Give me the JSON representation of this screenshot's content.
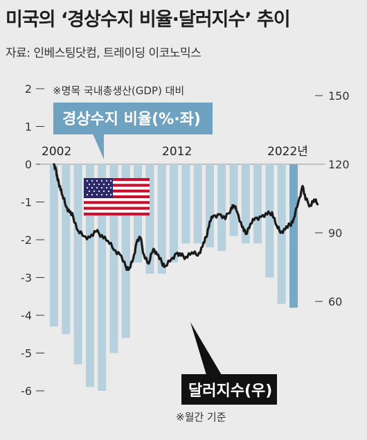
{
  "title": "미국의 ‘경상수지 비율·달러지수’ 추이",
  "source": "자료: 인베스팅닷컴, 트레이딩 이코노믹스",
  "colors": {
    "background": "#ebebeb",
    "bar_light": "#b7d0de",
    "bar_dark": "#78a9c4",
    "line": "#1a1a1a",
    "callout_bar": "#6fa2c0",
    "callout_line": "#111111"
  },
  "chart_data": {
    "type": "bar+line",
    "x_tick_labels": [
      "2002",
      "2012",
      "2022년"
    ],
    "left_axis": {
      "ticks": [
        "2",
        "1",
        "0",
        "-1",
        "-2",
        "-3",
        "-4",
        "-5",
        "-6"
      ],
      "range": [
        -6,
        2
      ]
    },
    "right_axis": {
      "ticks": [
        "150",
        "120",
        "90",
        "60"
      ],
      "range": [
        60,
        150
      ]
    },
    "note_left": "※명목 국내총생산(GDP) 대비",
    "note_bottom": "※월간 기준",
    "series": [
      {
        "name": "경상수지 비율(%·좌)",
        "type": "bar",
        "x": [
          2002,
          2003,
          2004,
          2005,
          2006,
          2007,
          2008,
          2009,
          2010,
          2011,
          2012,
          2013,
          2014,
          2015,
          2016,
          2017,
          2018,
          2019,
          2020,
          2021,
          2022
        ],
        "values": [
          -4.3,
          -4.5,
          -5.3,
          -5.9,
          -6.0,
          -5.0,
          -4.6,
          -2.6,
          -2.9,
          -2.9,
          -2.6,
          -2.1,
          -2.1,
          -2.2,
          -2.3,
          -1.9,
          -2.1,
          -2.1,
          -3.0,
          -3.7,
          -3.8
        ]
      },
      {
        "name": "달러지수(우)",
        "type": "line",
        "x": [
          2002.0,
          2002.15,
          2002.3,
          2002.5,
          2002.7,
          2003.0,
          2003.3,
          2003.6,
          2004.0,
          2004.5,
          2005.0,
          2005.5,
          2006.0,
          2006.5,
          2007.0,
          2007.5,
          2008.0,
          2008.3,
          2008.6,
          2008.9,
          2009.2,
          2009.5,
          2009.9,
          2010.3,
          2010.6,
          2011.0,
          2011.3,
          2011.8,
          2012.2,
          2012.6,
          2013.0,
          2013.5,
          2014.0,
          2014.4,
          2014.7,
          2015.0,
          2015.3,
          2015.8,
          2016.3,
          2016.8,
          2017.0,
          2017.3,
          2017.7,
          2018.0,
          2018.4,
          2018.8,
          2019.3,
          2019.8,
          2020.2,
          2020.6,
          2020.9,
          2021.3,
          2021.7,
          2022.0,
          2022.4,
          2022.75,
          2023.0,
          2023.4,
          2023.7,
          2024.0
        ],
        "values": [
          120.0,
          118.0,
          113.0,
          110.5,
          106.5,
          101.5,
          99.0,
          97.0,
          91.0,
          88.5,
          88.0,
          90.5,
          89.0,
          86.5,
          82.5,
          80.5,
          75.0,
          74.5,
          78.5,
          86.0,
          88.0,
          80.5,
          76.5,
          83.0,
          80.5,
          77.0,
          75.5,
          78.5,
          81.0,
          80.0,
          79.5,
          81.5,
          80.0,
          84.0,
          88.0,
          95.0,
          97.5,
          98.0,
          96.0,
          101.0,
          102.0,
          99.0,
          92.5,
          89.5,
          94.0,
          96.5,
          97.0,
          98.0,
          99.0,
          93.0,
          90.0,
          91.5,
          93.5,
          96.0,
          103.5,
          110.5,
          104.5,
          102.0,
          104.5,
          102.5
        ]
      }
    ]
  }
}
